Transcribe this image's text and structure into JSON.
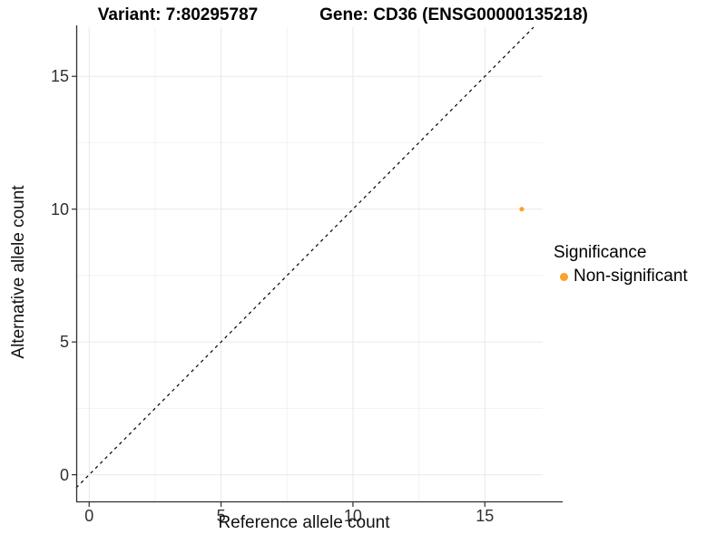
{
  "header": {
    "variant_title": "Variant: 7:80295787",
    "gene_title": "Gene: CD36 (ENSG00000135218)"
  },
  "axes": {
    "x_label": "Reference allele count",
    "y_label": "Alternative allele count"
  },
  "legend": {
    "title": "Significance",
    "items": [
      {
        "label": "Non-significant",
        "color": "#FFA028"
      }
    ]
  },
  "chart_data": {
    "type": "scatter",
    "title": "Variant: 7:80295787 | Gene: CD36 (ENSG00000135218)",
    "xlabel": "Reference allele count",
    "ylabel": "Alternative allele count",
    "x_ticks": [
      0,
      5,
      10,
      15
    ],
    "y_ticks": [
      0,
      5,
      10,
      15
    ],
    "x_minor_ticks": [
      2.5,
      7.5,
      12.5
    ],
    "y_minor_ticks": [
      2.5,
      7.5,
      12.5
    ],
    "xlim": [
      -0.49,
      17.33
    ],
    "ylim": [
      -1.02,
      16.85
    ],
    "grid": true,
    "legend_position": "right",
    "reference_line": {
      "type": "identity",
      "slope": 1,
      "intercept": 0,
      "style": "dashed",
      "color": "#000000"
    },
    "series": [
      {
        "name": "Non-significant",
        "color": "#FFA028",
        "points": [
          {
            "x": 16.4,
            "y": 10
          }
        ]
      }
    ],
    "style": {
      "major_grid_color": "#E9E9E9",
      "minor_grid_color": "#F2F2F2",
      "axis_line_color": "#2E2E2E",
      "tick_label_color": "#303030"
    }
  }
}
